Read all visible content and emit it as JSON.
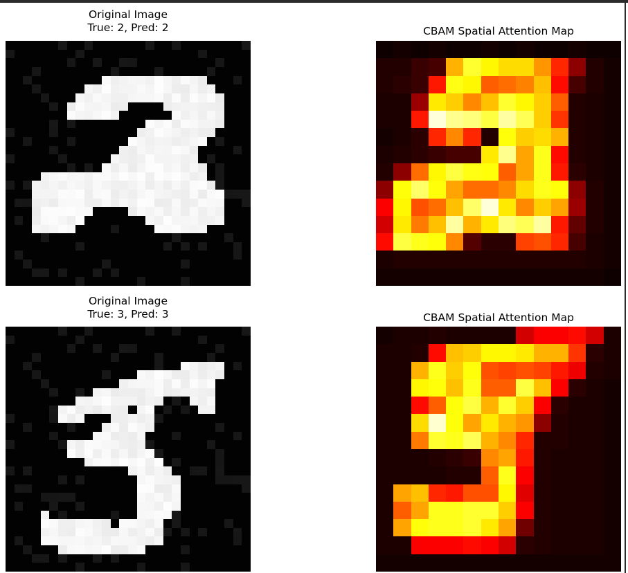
{
  "panels": [
    {
      "title_line1": "Original Image",
      "title_line2": "True: 2, Pred: 2",
      "true_label": 2,
      "pred_label": 2,
      "kind": "input-image",
      "digit": [
        "............................",
        "............................",
        "............................",
        "............................",
        "...........############.....",
        ".........###############....",
        "........#################...",
        ".......#######....#######...",
        ".......######......######...",
        "................#########...",
        "...............#########....",
        "..............#########.....",
        ".............#########......",
        "............##########......",
        "...........############.....",
        "....###################.....",
        "...#####################....",
        "...######################...",
        "...######################...",
        "...#######....###########...",
        "...######.......#########...",
        "...#####.........######.....",
        "............................",
        "............................",
        "............................",
        "............................",
        "............................",
        "............................"
      ]
    },
    {
      "title": "CBAM Spatial Attention Map",
      "kind": "attention-map",
      "colormap": "hot",
      "heat": [
        [
          0.02,
          0.03,
          0.02,
          0.03,
          0.02,
          0.02,
          0.03,
          0.02,
          0.03,
          0.02,
          0.02,
          0.03,
          0.02,
          0.02
        ],
        [
          0.05,
          0.05,
          0.08,
          0.1,
          0.62,
          0.78,
          0.72,
          0.68,
          0.68,
          0.58,
          0.42,
          0.2,
          0.05,
          0.03
        ],
        [
          0.05,
          0.06,
          0.08,
          0.4,
          0.75,
          0.72,
          0.5,
          0.52,
          0.55,
          0.64,
          0.38,
          0.1,
          0.05,
          0.03
        ],
        [
          0.04,
          0.04,
          0.22,
          0.7,
          0.66,
          0.56,
          0.64,
          0.78,
          0.72,
          0.66,
          0.5,
          0.05,
          0.04,
          0.03
        ],
        [
          0.04,
          0.04,
          0.4,
          0.96,
          0.88,
          0.86,
          0.8,
          0.9,
          0.82,
          0.66,
          0.44,
          0.05,
          0.04,
          0.03
        ],
        [
          0.03,
          0.04,
          0.06,
          0.42,
          0.56,
          0.42,
          0.05,
          0.74,
          0.66,
          0.68,
          0.62,
          0.05,
          0.04,
          0.03
        ],
        [
          0.04,
          0.05,
          0.06,
          0.08,
          0.1,
          0.1,
          0.7,
          0.88,
          0.6,
          0.76,
          0.38,
          0.05,
          0.04,
          0.03
        ],
        [
          0.05,
          0.2,
          0.52,
          0.72,
          0.8,
          0.75,
          0.74,
          0.5,
          0.6,
          0.76,
          0.4,
          0.06,
          0.04,
          0.03
        ],
        [
          0.2,
          0.74,
          0.84,
          0.74,
          0.6,
          0.52,
          0.52,
          0.56,
          0.68,
          0.76,
          0.74,
          0.2,
          0.05,
          0.03
        ],
        [
          0.36,
          0.72,
          0.48,
          0.52,
          0.64,
          0.84,
          0.96,
          0.7,
          0.56,
          0.66,
          0.6,
          0.22,
          0.05,
          0.03
        ],
        [
          0.3,
          0.7,
          0.54,
          0.64,
          0.9,
          0.62,
          0.7,
          0.86,
          0.82,
          0.9,
          0.4,
          0.14,
          0.05,
          0.03
        ],
        [
          0.38,
          0.8,
          0.76,
          0.74,
          0.56,
          0.12,
          0.06,
          0.06,
          0.46,
          0.48,
          0.42,
          0.1,
          0.04,
          0.03
        ],
        [
          0.04,
          0.05,
          0.05,
          0.05,
          0.05,
          0.05,
          0.05,
          0.05,
          0.05,
          0.05,
          0.05,
          0.05,
          0.04,
          0.03
        ],
        [
          0.03,
          0.03,
          0.03,
          0.03,
          0.03,
          0.03,
          0.03,
          0.03,
          0.03,
          0.03,
          0.03,
          0.03,
          0.03,
          0.02
        ]
      ]
    },
    {
      "title_line1": "Original Image",
      "title_line2": "True: 3, Pred: 3",
      "true_label": 3,
      "pred_label": 3,
      "kind": "input-image",
      "digit": [
        "............................",
        "............................",
        "............................",
        "............................",
        "....................#####...",
        "...............##########...",
        ".............###########....",
        "..........##############....",
        "........##########...###....",
        "......########.##.....##....",
        "......###...#####...........",
        "...........######...........",
        "..........######............",
        ".......#########............",
        ".......##########...........",
        ".........#########..........",
        "..............#####.........",
        "...............#####........",
        "...............#####........",
        "...............#####........",
        "...............#####........",
        "....#..........####.........",
        "....########.#####..........",
        "....##############..........",
        "....##############..........",
        "......##########............",
        "............................",
        "............................"
      ]
    },
    {
      "title": "CBAM Spatial Attention Map",
      "kind": "attention-map",
      "colormap": "hot",
      "heat": [
        [
          0.03,
          0.04,
          0.04,
          0.05,
          0.04,
          0.04,
          0.04,
          0.04,
          0.3,
          0.36,
          0.36,
          0.38,
          0.3,
          0.04
        ],
        [
          0.04,
          0.04,
          0.05,
          0.38,
          0.64,
          0.66,
          0.72,
          0.72,
          0.7,
          0.62,
          0.62,
          0.44,
          0.06,
          0.04
        ],
        [
          0.04,
          0.04,
          0.62,
          0.76,
          0.66,
          0.74,
          0.48,
          0.46,
          0.48,
          0.46,
          0.4,
          0.34,
          0.05,
          0.04
        ],
        [
          0.04,
          0.04,
          0.72,
          0.74,
          0.64,
          0.76,
          0.5,
          0.5,
          0.8,
          0.64,
          0.36,
          0.06,
          0.04,
          0.03
        ],
        [
          0.04,
          0.04,
          0.38,
          0.5,
          0.74,
          0.8,
          0.62,
          0.78,
          0.66,
          0.36,
          0.06,
          0.04,
          0.04,
          0.03
        ],
        [
          0.04,
          0.04,
          0.68,
          0.95,
          0.74,
          0.6,
          0.7,
          0.62,
          0.58,
          0.2,
          0.05,
          0.04,
          0.04,
          0.03
        ],
        [
          0.04,
          0.04,
          0.54,
          0.78,
          0.76,
          0.82,
          0.62,
          0.56,
          0.42,
          0.05,
          0.05,
          0.04,
          0.04,
          0.03
        ],
        [
          0.04,
          0.04,
          0.04,
          0.05,
          0.06,
          0.08,
          0.56,
          0.6,
          0.4,
          0.05,
          0.04,
          0.04,
          0.04,
          0.03
        ],
        [
          0.04,
          0.04,
          0.04,
          0.04,
          0.05,
          0.05,
          0.5,
          0.76,
          0.36,
          0.05,
          0.04,
          0.04,
          0.04,
          0.03
        ],
        [
          0.04,
          0.6,
          0.64,
          0.42,
          0.4,
          0.48,
          0.48,
          0.72,
          0.32,
          0.05,
          0.04,
          0.04,
          0.04,
          0.03
        ],
        [
          0.04,
          0.5,
          0.6,
          0.76,
          0.76,
          0.78,
          0.78,
          0.66,
          0.36,
          0.05,
          0.04,
          0.04,
          0.04,
          0.03
        ],
        [
          0.04,
          0.6,
          0.74,
          0.76,
          0.76,
          0.78,
          0.7,
          0.6,
          0.16,
          0.05,
          0.04,
          0.04,
          0.04,
          0.03
        ],
        [
          0.04,
          0.04,
          0.36,
          0.36,
          0.36,
          0.38,
          0.36,
          0.3,
          0.06,
          0.05,
          0.04,
          0.04,
          0.04,
          0.03
        ],
        [
          0.03,
          0.03,
          0.03,
          0.03,
          0.03,
          0.03,
          0.03,
          0.03,
          0.03,
          0.03,
          0.03,
          0.03,
          0.03,
          0.03
        ]
      ]
    }
  ]
}
